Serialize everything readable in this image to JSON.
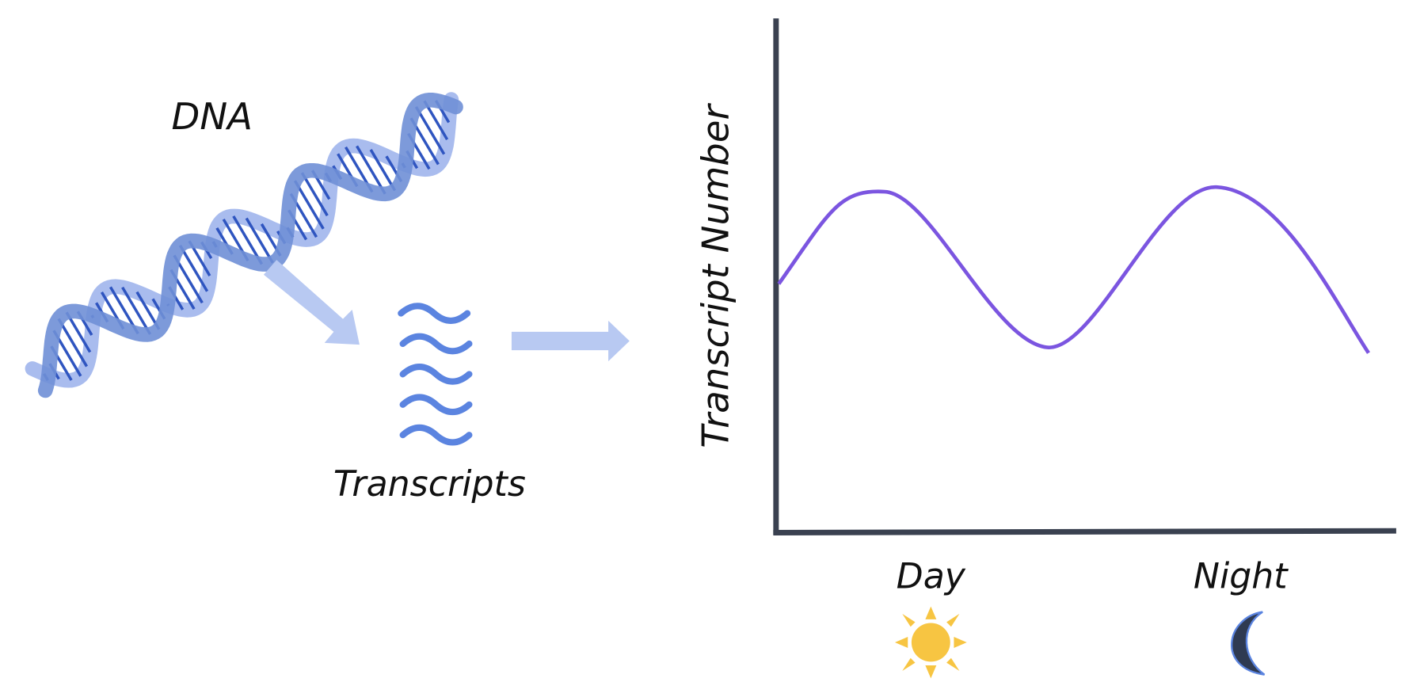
{
  "labels": {
    "dna": "DNA",
    "transcripts": "Transcripts",
    "y_axis": "Transcript Number",
    "day": "Day",
    "night": "Night"
  }
}
